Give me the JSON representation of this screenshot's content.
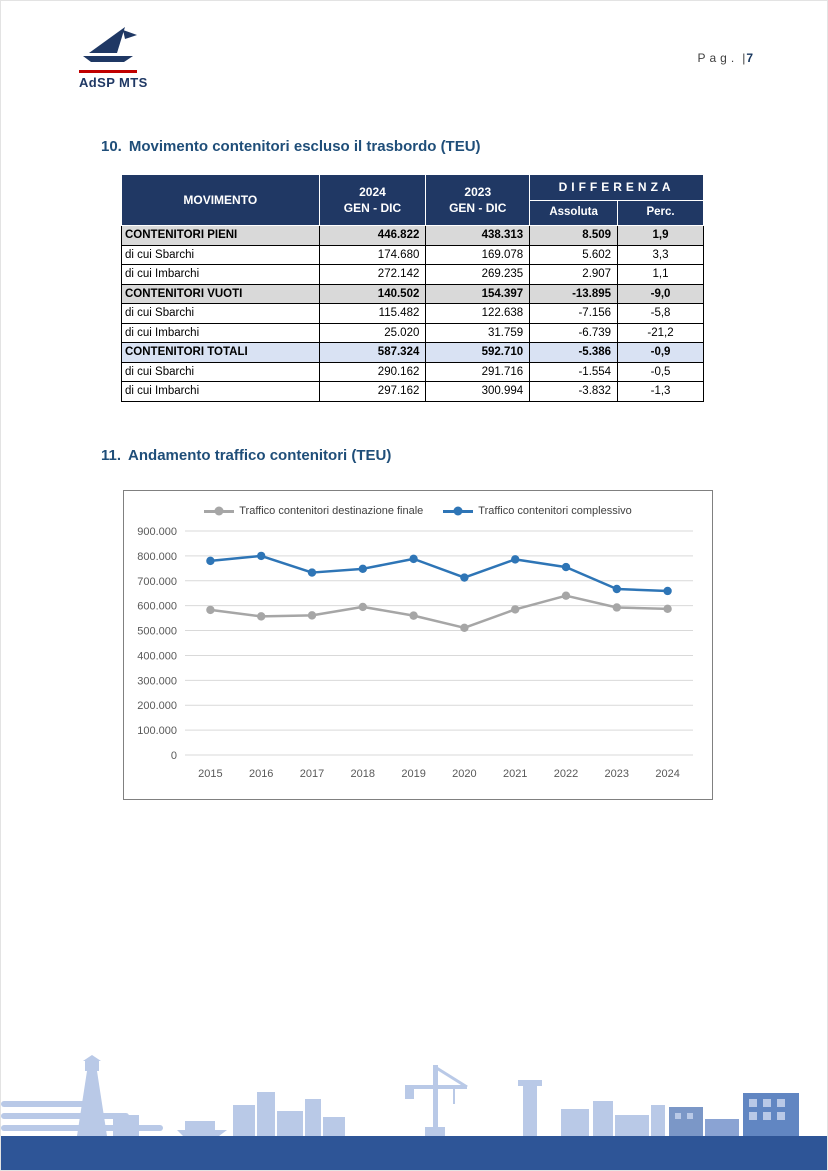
{
  "header": {
    "logo_text": "AdSP MTS",
    "page_label": "Pag.",
    "page_separator": "|",
    "page_number": "7"
  },
  "sections": {
    "movement": {
      "number": "10.",
      "title": "Movimento contenitori escluso il trasbordo (TEU)"
    },
    "trend": {
      "number": "11.",
      "title": "Andamento traffico contenitori (TEU)"
    }
  },
  "table": {
    "headers": {
      "movimento": "MOVIMENTO",
      "y2024": "2024",
      "y2023": "2023",
      "period": "GEN - DIC",
      "differenza": "DIFFERENZA",
      "assoluta": "Assoluta",
      "perc": "Perc."
    },
    "rows": [
      {
        "label": "CONTENITORI PIENI",
        "v2024": "446.822",
        "v2023": "438.313",
        "assoluta": "8.509",
        "perc": "1,9",
        "kind": "category-gray"
      },
      {
        "label": "di cui Sbarchi",
        "v2024": "174.680",
        "v2023": "169.078",
        "assoluta": "5.602",
        "perc": "3,3",
        "kind": "detail"
      },
      {
        "label": "di cui Imbarchi",
        "v2024": "272.142",
        "v2023": "269.235",
        "assoluta": "2.907",
        "perc": "1,1",
        "kind": "detail"
      },
      {
        "label": "CONTENITORI VUOTI",
        "v2024": "140.502",
        "v2023": "154.397",
        "assoluta": "-13.895",
        "perc": "-9,0",
        "kind": "category-gray"
      },
      {
        "label": "di cui Sbarchi",
        "v2024": "115.482",
        "v2023": "122.638",
        "assoluta": "-7.156",
        "perc": "-5,8",
        "kind": "detail"
      },
      {
        "label": "di cui Imbarchi",
        "v2024": "25.020",
        "v2023": "31.759",
        "assoluta": "-6.739",
        "perc": "-21,2",
        "kind": "detail"
      },
      {
        "label": "CONTENITORI TOTALI",
        "v2024": "587.324",
        "v2023": "592.710",
        "assoluta": "-5.386",
        "perc": "-0,9",
        "kind": "category-blue"
      },
      {
        "label": "di cui Sbarchi",
        "v2024": "290.162",
        "v2023": "291.716",
        "assoluta": "-1.554",
        "perc": "-0,5",
        "kind": "detail"
      },
      {
        "label": "di cui Imbarchi",
        "v2024": "297.162",
        "v2023": "300.994",
        "assoluta": "-3.832",
        "perc": "-1,3",
        "kind": "detail"
      }
    ]
  },
  "chart_data": {
    "type": "line",
    "categories": [
      "2015",
      "2016",
      "2017",
      "2018",
      "2019",
      "2020",
      "2021",
      "2022",
      "2023",
      "2024"
    ],
    "series": [
      {
        "name": "Traffico contenitori destinazione finale",
        "color": "#a6a6a6",
        "values": [
          583000,
          557000,
          561000,
          595000,
          560000,
          511000,
          585000,
          640000,
          592710,
          587324
        ]
      },
      {
        "name": "Traffico contenitori complessivo",
        "color": "#2e75b6",
        "values": [
          780000,
          800000,
          733000,
          748000,
          788000,
          713000,
          786000,
          755000,
          667000,
          659000
        ]
      }
    ],
    "title": "",
    "xlabel": "",
    "ylabel": "",
    "ylim": [
      0,
      900000
    ],
    "ytick_step": 100000,
    "ytick_labels": [
      "0",
      "100.000",
      "200.000",
      "300.000",
      "400.000",
      "500.000",
      "600.000",
      "700.000",
      "800.000",
      "900.000"
    ],
    "legend_position": "top",
    "grid": true
  },
  "colors": {
    "table_header_bg": "#203864",
    "heading_text": "#1f4e79",
    "category_gray_bg": "#d9d9d9",
    "category_blue_bg": "#d9e2f3",
    "skyline_light": "#b9c9e7",
    "skyline_medium": "#7b97c7",
    "footer_band": "#2e5597",
    "logo_rule_red": "#c00000"
  }
}
